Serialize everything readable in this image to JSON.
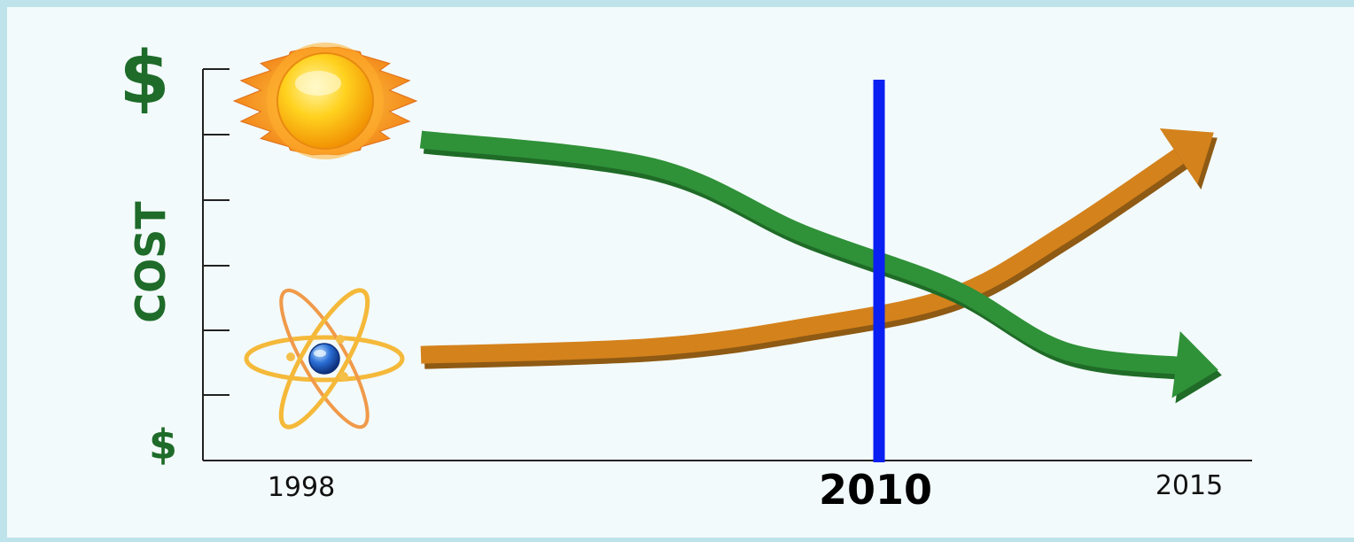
{
  "chart_data": {
    "type": "line",
    "ylabel": "COST",
    "y_top_label": "$",
    "y_bottom_label": "$",
    "x_ticks": [
      "1998",
      "2010",
      "2015"
    ],
    "highlight_year": "2010",
    "series": [
      {
        "icon": "sun-icon",
        "color": "#2f9138",
        "shade": "#1f6b27",
        "trend": "decreasing",
        "x": [
          1998,
          2002,
          2006,
          2010,
          2013,
          2015
        ],
        "y": [
          0.82,
          0.75,
          0.58,
          0.44,
          0.28,
          0.24
        ]
      },
      {
        "icon": "atom-icon",
        "color": "#d4821c",
        "shade": "#8e5a14",
        "trend": "increasing",
        "x": [
          1998,
          2002,
          2006,
          2010,
          2013,
          2015
        ],
        "y": [
          0.27,
          0.29,
          0.34,
          0.42,
          0.58,
          0.8
        ]
      }
    ],
    "vline_color": "#0a1ff2"
  }
}
